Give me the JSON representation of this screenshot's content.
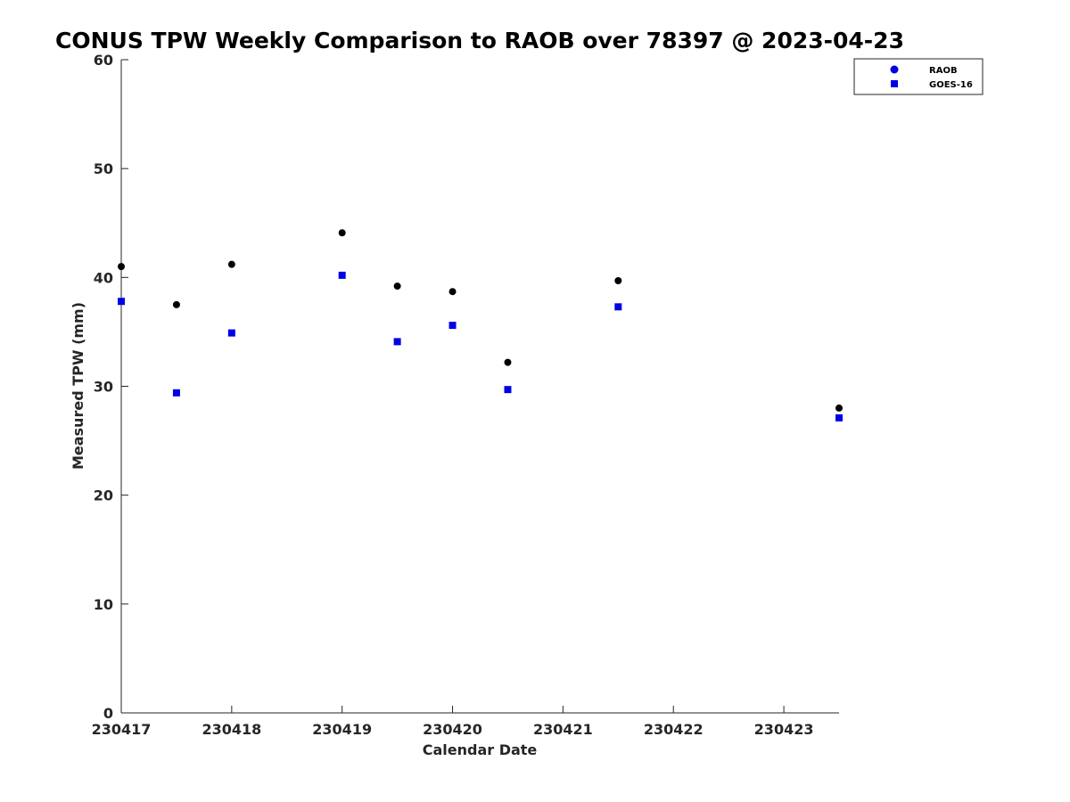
{
  "chart_data": {
    "type": "scatter",
    "title": "CONUS TPW Weekly Comparison to RAOB over 78397 @ 2023-04-23",
    "xlabel": "Calendar Date",
    "ylabel": "Measured TPW (mm)",
    "xlim": [
      230417,
      230423.5
    ],
    "ylim": [
      0,
      60
    ],
    "x_ticks": [
      230417,
      230418,
      230419,
      230420,
      230421,
      230422,
      230423
    ],
    "x_tick_labels": [
      "230417",
      "230418",
      "230419",
      "230420",
      "230421",
      "230422",
      "230423"
    ],
    "y_ticks": [
      0,
      10,
      20,
      30,
      40,
      50,
      60
    ],
    "y_tick_labels": [
      "0",
      "10",
      "20",
      "30",
      "40",
      "50",
      "60"
    ],
    "grid": false,
    "legend_position": "top-right",
    "series": [
      {
        "name": "RAOB",
        "marker": "circle",
        "color": "#000000",
        "legend_color": "#0000e6",
        "x": [
          230417,
          230417.5,
          230418,
          230419,
          230419.5,
          230420,
          230420.5,
          230421.5,
          230423.5
        ],
        "y": [
          41.0,
          37.5,
          41.2,
          44.1,
          39.2,
          38.7,
          32.2,
          39.7,
          28.0
        ]
      },
      {
        "name": "GOES-16",
        "marker": "square",
        "color": "#0000e6",
        "legend_color": "#0000e6",
        "x": [
          230417,
          230417.5,
          230418,
          230419,
          230419.5,
          230420,
          230420.5,
          230421.5,
          230423.5
        ],
        "y": [
          37.8,
          29.4,
          34.9,
          40.2,
          34.1,
          35.6,
          29.7,
          37.3,
          27.1
        ]
      }
    ]
  }
}
